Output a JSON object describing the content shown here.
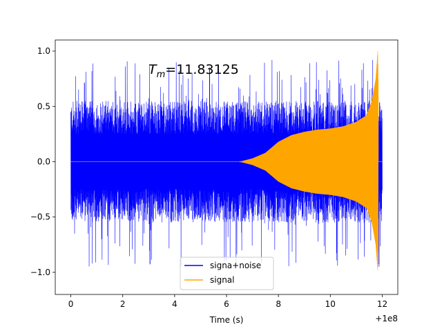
{
  "chart_data": {
    "type": "line",
    "title": "",
    "xlabel": "Time (s)",
    "ylabel": "",
    "x_offset_label": "+1e8",
    "xlim": [
      -0.6,
      12.6
    ],
    "ylim": [
      -1.2,
      1.1
    ],
    "xticks": [
      0,
      2,
      4,
      6,
      8,
      10,
      12
    ],
    "xtick_labels": [
      "0",
      "2",
      "4",
      "6",
      "8",
      "10",
      "12"
    ],
    "yticks": [
      -1.0,
      -0.5,
      0.0,
      0.5,
      1.0
    ],
    "ytick_labels": [
      "−1.0",
      "−0.5",
      "0.0",
      "0.5",
      "1.0"
    ],
    "grid": false,
    "legend_position": "lower-center",
    "annotation": {
      "math_symbol": "T",
      "math_subscript": "m",
      "text": "=11.83125"
    },
    "series": [
      {
        "name": "signa+noise",
        "color": "#0000ff",
        "description": "dense noise over time 0 to 12, typical amplitude about ±0.55, peaks up to about 0.92 and down to about -1.05",
        "noise_band": 0.55,
        "peak_max": 0.92,
        "peak_min": -1.05,
        "x_range": [
          0,
          12
        ]
      },
      {
        "name": "signal",
        "color": "#ffa500",
        "description": "chirp: zero until about 6.5, envelope grows to about 0.3 by 9.5 and up to 1.0 at 11.83, then zero",
        "envelope": [
          {
            "t": 0.0,
            "a": 0.0
          },
          {
            "t": 6.5,
            "a": 0.0
          },
          {
            "t": 7.0,
            "a": 0.03
          },
          {
            "t": 7.5,
            "a": 0.08
          },
          {
            "t": 8.0,
            "a": 0.18
          },
          {
            "t": 8.5,
            "a": 0.24
          },
          {
            "t": 9.0,
            "a": 0.27
          },
          {
            "t": 9.5,
            "a": 0.29
          },
          {
            "t": 10.0,
            "a": 0.3
          },
          {
            "t": 10.5,
            "a": 0.32
          },
          {
            "t": 11.0,
            "a": 0.36
          },
          {
            "t": 11.4,
            "a": 0.42
          },
          {
            "t": 11.6,
            "a": 0.55
          },
          {
            "t": 11.75,
            "a": 0.75
          },
          {
            "t": 11.83,
            "a": 1.0
          },
          {
            "t": 11.9,
            "a": 0.0
          },
          {
            "t": 12.0,
            "a": 0.0
          }
        ],
        "cutoff_time": 11.83125,
        "x_range": [
          0,
          12
        ]
      }
    ]
  }
}
